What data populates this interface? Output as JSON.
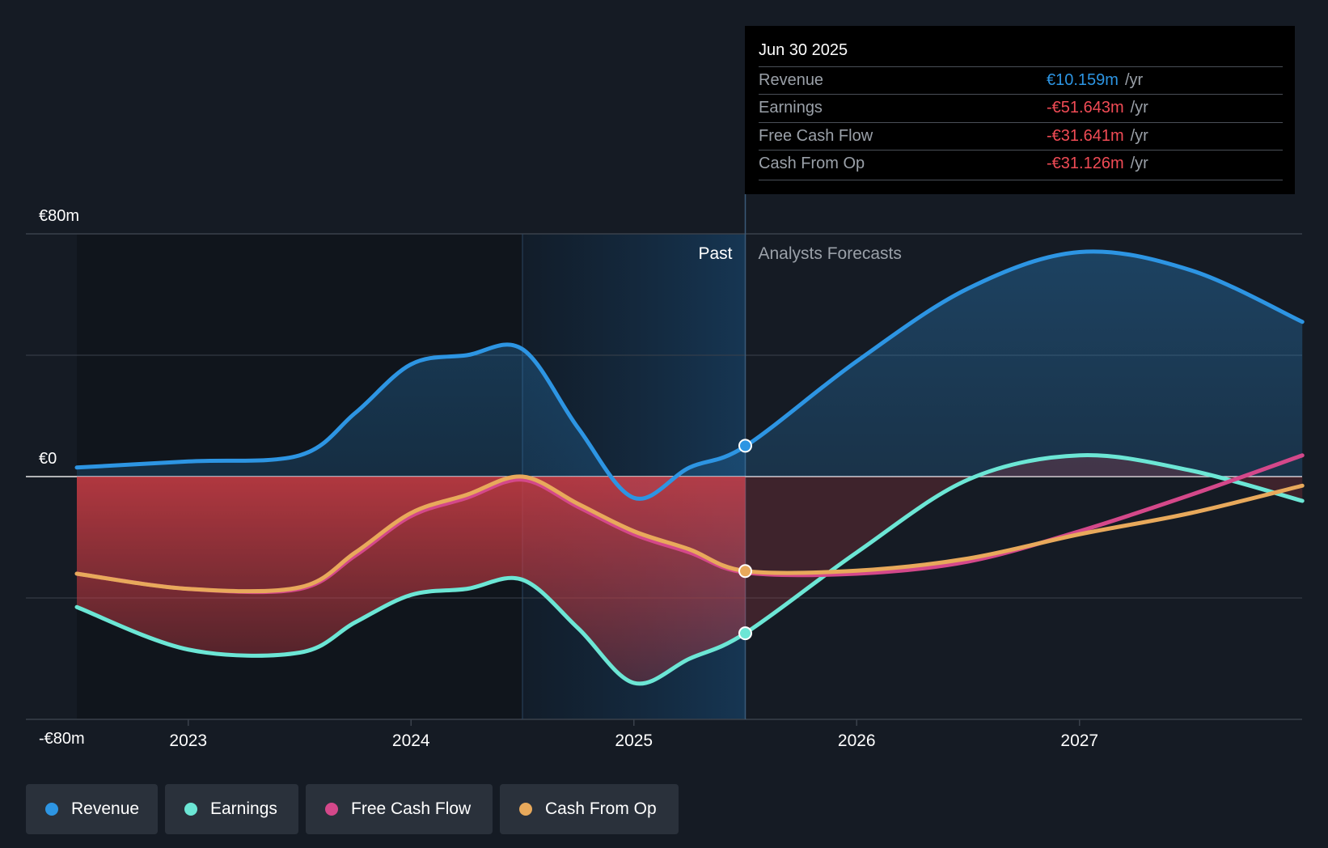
{
  "tooltip": {
    "date": "Jun 30 2025",
    "rows": [
      {
        "label": "Revenue",
        "value": "€10.159m",
        "unit": "/yr",
        "color": "#2d95e3"
      },
      {
        "label": "Earnings",
        "value": "-€51.643m",
        "unit": "/yr",
        "color": "#f04b55"
      },
      {
        "label": "Free Cash Flow",
        "value": "-€31.641m",
        "unit": "/yr",
        "color": "#f04b55"
      },
      {
        "label": "Cash From Op",
        "value": "-€31.126m",
        "unit": "/yr",
        "color": "#f04b55"
      }
    ]
  },
  "legend": [
    {
      "label": "Revenue",
      "color": "#2d95e3"
    },
    {
      "label": "Earnings",
      "color": "#6ce6d5"
    },
    {
      "label": "Free Cash Flow",
      "color": "#d4488a"
    },
    {
      "label": "Cash From Op",
      "color": "#e8a95b"
    }
  ],
  "chart_data": {
    "type": "line",
    "y_unit": "€m",
    "ylim": [
      -80,
      80
    ],
    "xlim": [
      2022.5,
      2028.0
    ],
    "y_ticks": [
      {
        "value": 80,
        "label": "€80m"
      },
      {
        "value": 0,
        "label": "€0"
      },
      {
        "value": -80,
        "label": "-€80m"
      }
    ],
    "x_ticks": [
      {
        "value": 2023,
        "label": "2023"
      },
      {
        "value": 2024,
        "label": "2024"
      },
      {
        "value": 2025,
        "label": "2025"
      },
      {
        "value": 2026,
        "label": "2026"
      },
      {
        "value": 2027,
        "label": "2027"
      }
    ],
    "past_label": "Past",
    "forecast_label": "Analysts Forecasts",
    "past_end": 2025.5,
    "highlight_start": 2024.5,
    "series": [
      {
        "name": "Revenue",
        "color": "#2d95e3",
        "x": [
          2022.5,
          2023.0,
          2023.5,
          2023.75,
          2024.0,
          2024.25,
          2024.5,
          2024.75,
          2025.0,
          2025.25,
          2025.5,
          2026.0,
          2026.5,
          2027.0,
          2027.5,
          2028.0
        ],
        "values": [
          3,
          5,
          7,
          21,
          37,
          40,
          42,
          16,
          -7,
          3,
          10,
          38,
          62,
          74,
          68,
          51
        ]
      },
      {
        "name": "Earnings",
        "color": "#6ce6d5",
        "x": [
          2022.5,
          2023.0,
          2023.5,
          2023.75,
          2024.0,
          2024.25,
          2024.5,
          2024.75,
          2025.0,
          2025.25,
          2025.5,
          2026.0,
          2026.5,
          2027.0,
          2027.5,
          2028.0
        ],
        "values": [
          -43,
          -57,
          -58,
          -48,
          -39,
          -37,
          -34,
          -50,
          -68,
          -60,
          -51.6,
          -25,
          -1,
          7,
          2,
          -8
        ]
      },
      {
        "name": "Free Cash Flow",
        "color": "#d4488a",
        "x": [
          2022.5,
          2023.0,
          2023.5,
          2023.75,
          2024.0,
          2024.25,
          2024.5,
          2024.75,
          2025.0,
          2025.25,
          2025.5,
          2026.0,
          2026.5,
          2027.0,
          2027.5,
          2028.0
        ],
        "values": [
          -32,
          -37,
          -37,
          -26,
          -13,
          -7,
          -1,
          -10,
          -19,
          -25,
          -31.6,
          -32,
          -28,
          -18,
          -6,
          7
        ]
      },
      {
        "name": "Cash From Op",
        "color": "#e8a95b",
        "x": [
          2022.5,
          2023.0,
          2023.5,
          2023.75,
          2024.0,
          2024.25,
          2024.5,
          2024.75,
          2025.0,
          2025.25,
          2025.5,
          2026.0,
          2026.5,
          2027.0,
          2027.5,
          2028.0
        ],
        "values": [
          -32,
          -37,
          -36.5,
          -25,
          -12,
          -6,
          0,
          -9,
          -18,
          -24,
          -31.1,
          -31,
          -27,
          -19,
          -12,
          -3
        ]
      }
    ],
    "markers": [
      {
        "series": "Revenue",
        "x": 2025.5,
        "value": 10.159
      },
      {
        "series": "Earnings",
        "x": 2025.5,
        "value": -51.643
      },
      {
        "series": "Cash From Op",
        "x": 2025.5,
        "value": -31.126
      }
    ]
  }
}
